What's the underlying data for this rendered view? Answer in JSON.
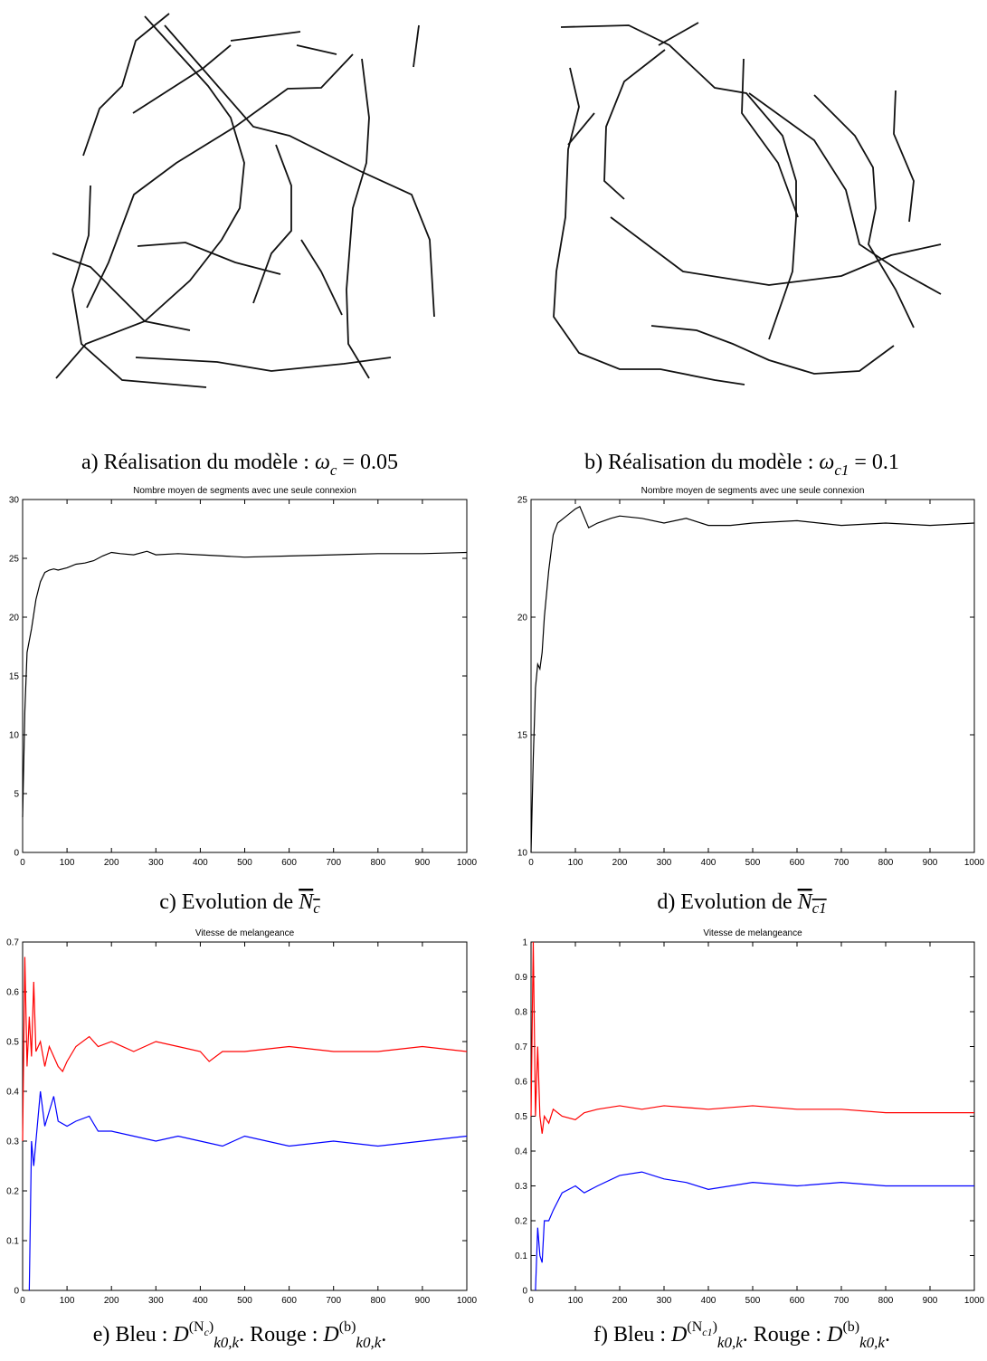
{
  "captions": [
    {
      "parts": [
        {
          "text": "a) Réalisation du modèle : ",
          "style": "t"
        },
        {
          "text": "ω",
          "style": "m"
        },
        {
          "text": "c",
          "style": "sub"
        },
        {
          "text": " = 0.05",
          "style": "t"
        }
      ]
    },
    {
      "parts": [
        {
          "text": "b) Réalisation du modèle : ",
          "style": "t"
        },
        {
          "text": "ω",
          "style": "m"
        },
        {
          "text": "c1",
          "style": "sub"
        },
        {
          "text": " = 0.1",
          "style": "t"
        }
      ]
    },
    {
      "parts": [
        {
          "text": "c) Evolution de ",
          "style": "t"
        },
        {
          "text": "N",
          "style": "over"
        },
        {
          "text": "c",
          "style": "oversub"
        }
      ]
    },
    {
      "parts": [
        {
          "text": "d) Evolution de ",
          "style": "t"
        },
        {
          "text": "N",
          "style": "over"
        },
        {
          "text": "c1",
          "style": "oversub"
        }
      ]
    },
    {
      "parts": [
        {
          "text": "e) Bleu : ",
          "style": "t"
        },
        {
          "text": "D",
          "style": "m"
        },
        {
          "text": "(N",
          "style": "sup"
        },
        {
          "text": "c",
          "style": "supsub"
        },
        {
          "text": ")",
          "style": "sup"
        },
        {
          "text": "k0,k",
          "style": "sub"
        },
        {
          "text": ". Rouge : ",
          "style": "t"
        },
        {
          "text": "D",
          "style": "m"
        },
        {
          "text": "(b)",
          "style": "sup"
        },
        {
          "text": "k0,k",
          "style": "sub"
        },
        {
          "text": ".",
          "style": "t"
        }
      ]
    },
    {
      "parts": [
        {
          "text": "f) Bleu : ",
          "style": "t"
        },
        {
          "text": "D",
          "style": "m"
        },
        {
          "text": "(N",
          "style": "sup"
        },
        {
          "text": "c1",
          "style": "supsub"
        },
        {
          "text": ")",
          "style": "sup"
        },
        {
          "text": "k0,k",
          "style": "sub"
        },
        {
          "text": ". Rouge : ",
          "style": "t"
        },
        {
          "text": "D",
          "style": "m"
        },
        {
          "text": "(b)",
          "style": "sup"
        },
        {
          "text": "k0,k",
          "style": "sub"
        },
        {
          "text": ".",
          "style": "t"
        }
      ]
    }
  ],
  "chart_data": [
    {
      "type": "line",
      "title": "Nombre moyen de segments avec une seule connexion",
      "xlim": [
        0,
        1000
      ],
      "xticks": [
        0,
        100,
        200,
        300,
        400,
        500,
        600,
        700,
        800,
        900,
        1000
      ],
      "ylim": [
        0,
        30
      ],
      "yticks": [
        0,
        5,
        10,
        15,
        20,
        25,
        30
      ],
      "series": [
        {
          "color": "#000000",
          "x": [
            0,
            5,
            10,
            20,
            30,
            40,
            50,
            60,
            70,
            80,
            100,
            120,
            140,
            160,
            180,
            200,
            220,
            250,
            280,
            300,
            350,
            400,
            450,
            500,
            600,
            700,
            800,
            900,
            1000
          ],
          "values": [
            3,
            12,
            17,
            19,
            21.5,
            23,
            23.8,
            24,
            24.1,
            24,
            24.2,
            24.5,
            24.6,
            24.8,
            25.2,
            25.5,
            25.4,
            25.3,
            25.6,
            25.3,
            25.4,
            25.3,
            25.2,
            25.1,
            25.2,
            25.3,
            25.4,
            25.4,
            25.5
          ]
        }
      ]
    },
    {
      "type": "line",
      "title": "Nombre moyen de segments avec une seule connexion",
      "xlim": [
        0,
        1000
      ],
      "xticks": [
        0,
        100,
        200,
        300,
        400,
        500,
        600,
        700,
        800,
        900,
        1000
      ],
      "ylim": [
        10,
        25
      ],
      "yticks": [
        10,
        15,
        20,
        25
      ],
      "series": [
        {
          "color": "#000000",
          "x": [
            0,
            5,
            10,
            15,
            20,
            25,
            30,
            40,
            50,
            60,
            80,
            100,
            110,
            130,
            150,
            180,
            200,
            250,
            300,
            350,
            400,
            450,
            500,
            600,
            700,
            800,
            900,
            1000
          ],
          "values": [
            10,
            14,
            17,
            18,
            17.8,
            18.5,
            20,
            22,
            23.5,
            24,
            24.3,
            24.6,
            24.7,
            23.8,
            24,
            24.2,
            24.3,
            24.2,
            24,
            24.2,
            23.9,
            23.9,
            24,
            24.1,
            23.9,
            24,
            23.9,
            24
          ]
        }
      ]
    },
    {
      "type": "line",
      "title": "Vitesse de melangeance",
      "xlim": [
        0,
        1000
      ],
      "xticks": [
        0,
        100,
        200,
        300,
        400,
        500,
        600,
        700,
        800,
        900,
        1000
      ],
      "ylim": [
        0,
        0.7
      ],
      "yticks": [
        0,
        0.1,
        0.2,
        0.3,
        0.4,
        0.5,
        0.6,
        0.7
      ],
      "series": [
        {
          "color": "#ff0000",
          "x": [
            0,
            5,
            10,
            15,
            20,
            25,
            30,
            40,
            50,
            60,
            70,
            80,
            90,
            100,
            120,
            150,
            170,
            200,
            250,
            300,
            350,
            400,
            420,
            450,
            500,
            600,
            700,
            800,
            900,
            1000
          ],
          "values": [
            0.3,
            0.67,
            0.45,
            0.55,
            0.47,
            0.62,
            0.48,
            0.5,
            0.45,
            0.49,
            0.47,
            0.45,
            0.44,
            0.46,
            0.49,
            0.51,
            0.49,
            0.5,
            0.48,
            0.5,
            0.49,
            0.48,
            0.46,
            0.48,
            0.48,
            0.49,
            0.48,
            0.48,
            0.49,
            0.48
          ]
        },
        {
          "color": "#0000ff",
          "x": [
            15,
            20,
            25,
            30,
            40,
            50,
            60,
            70,
            80,
            100,
            120,
            150,
            170,
            200,
            250,
            300,
            350,
            400,
            450,
            500,
            600,
            700,
            800,
            900,
            1000
          ],
          "values": [
            0,
            0.3,
            0.25,
            0.3,
            0.4,
            0.33,
            0.36,
            0.39,
            0.34,
            0.33,
            0.34,
            0.35,
            0.32,
            0.32,
            0.31,
            0.3,
            0.31,
            0.3,
            0.29,
            0.31,
            0.29,
            0.3,
            0.29,
            0.3,
            0.31
          ]
        }
      ]
    },
    {
      "type": "line",
      "title": "Vitesse de melangeance",
      "xlim": [
        0,
        1000
      ],
      "xticks": [
        0,
        100,
        200,
        300,
        400,
        500,
        600,
        700,
        800,
        900,
        1000
      ],
      "ylim": [
        0,
        1
      ],
      "yticks": [
        0,
        0.1,
        0.2,
        0.3,
        0.4,
        0.5,
        0.6,
        0.7,
        0.8,
        0.9,
        1
      ],
      "series": [
        {
          "color": "#ff0000",
          "x": [
            0,
            5,
            10,
            15,
            20,
            25,
            30,
            40,
            50,
            70,
            100,
            120,
            150,
            200,
            250,
            300,
            400,
            500,
            600,
            700,
            800,
            900,
            1000
          ],
          "values": [
            0.5,
            1,
            0.5,
            0.7,
            0.5,
            0.45,
            0.5,
            0.48,
            0.52,
            0.5,
            0.49,
            0.51,
            0.52,
            0.53,
            0.52,
            0.53,
            0.52,
            0.53,
            0.52,
            0.52,
            0.51,
            0.51,
            0.51
          ]
        },
        {
          "color": "#0000ff",
          "x": [
            10,
            15,
            20,
            25,
            30,
            40,
            50,
            70,
            100,
            120,
            150,
            200,
            250,
            300,
            350,
            400,
            500,
            600,
            700,
            800,
            900,
            1000
          ],
          "values": [
            0,
            0.18,
            0.1,
            0.08,
            0.2,
            0.2,
            0.23,
            0.28,
            0.3,
            0.28,
            0.3,
            0.33,
            0.34,
            0.32,
            0.31,
            0.29,
            0.31,
            0.3,
            0.31,
            0.3,
            0.3,
            0.3
          ]
        }
      ]
    }
  ]
}
